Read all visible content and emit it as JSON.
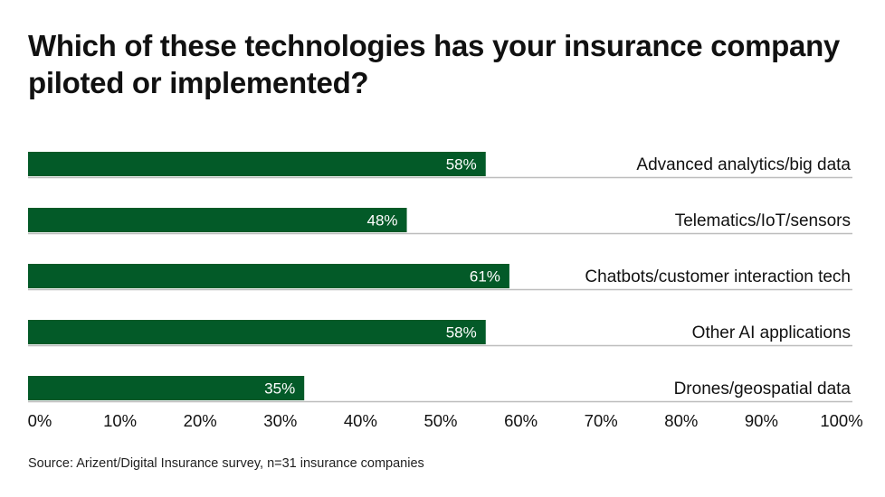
{
  "chart_data": {
    "type": "bar",
    "orientation": "horizontal",
    "title": "Which of these technologies has your insurance company piloted or implemented?",
    "categories": [
      "Advanced analytics/big data",
      "Telematics/IoT/sensors",
      "Chatbots/customer interaction tech",
      "Other AI applications",
      "Drones/geospatial data"
    ],
    "values": [
      58,
      48,
      61,
      58,
      35
    ],
    "value_labels": [
      "58%",
      "48%",
      "61%",
      "58%",
      "35%"
    ],
    "xlim": [
      0,
      100
    ],
    "x_ticks": [
      "0%",
      "10%",
      "20%",
      "30%",
      "40%",
      "50%",
      "60%",
      "70%",
      "80%",
      "90%",
      "100%"
    ],
    "grid": false,
    "bar_color": "#035a28",
    "source": "Source: Arizent/Digital Insurance survey, n=31 insurance companies"
  }
}
